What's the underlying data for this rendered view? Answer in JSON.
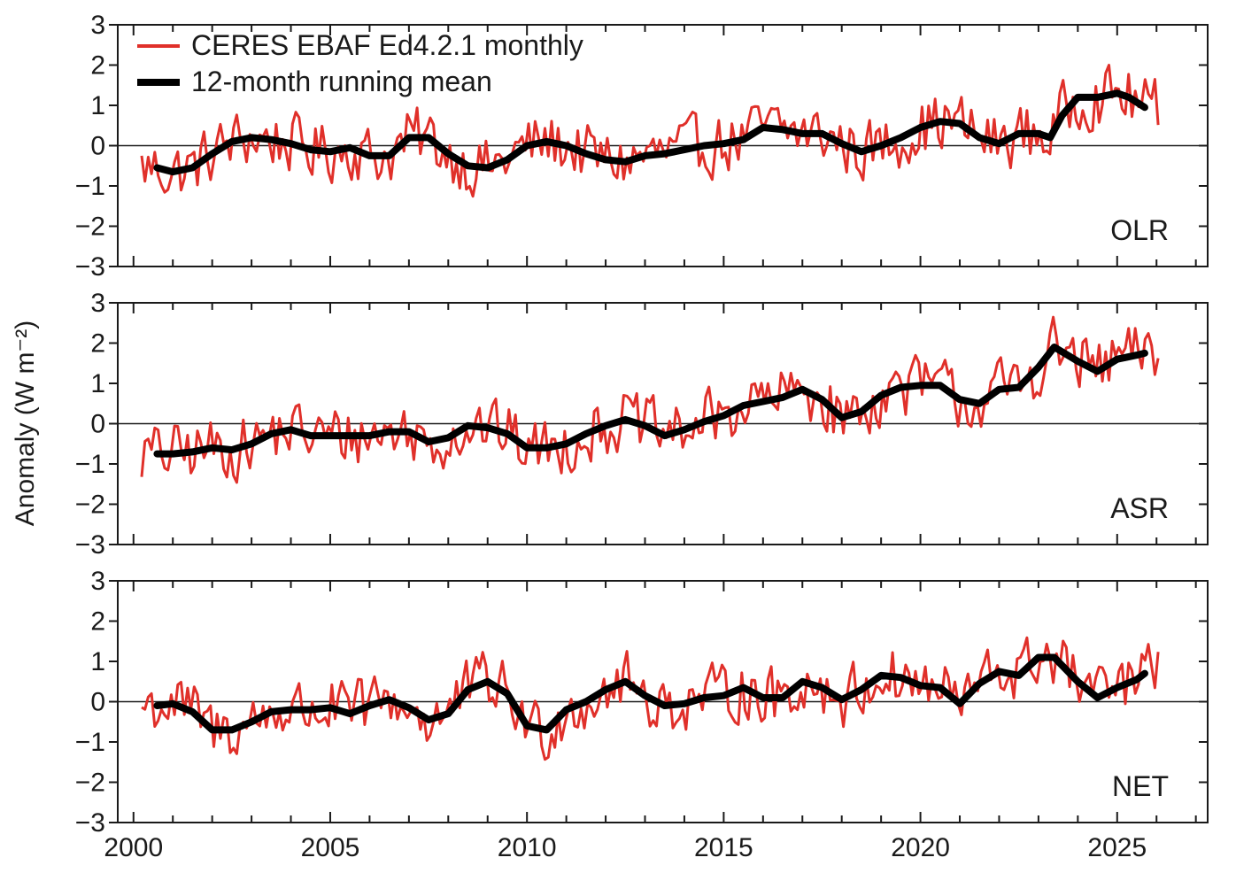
{
  "chart_data": {
    "type": "line",
    "ylabel": "Anomaly (W m⁻²)",
    "xlabel": "",
    "xlim": [
      1999.6,
      2027.3
    ],
    "ylim": [
      -3,
      3
    ],
    "x_ticks": [
      2000,
      2005,
      2010,
      2015,
      2020,
      2025
    ],
    "y_ticks": [
      -3,
      -2,
      -1,
      0,
      1,
      2,
      3
    ],
    "minor_x_tick_step_years": 1,
    "zero_line": true,
    "grid": false,
    "legend_position": "top-left",
    "legend": [
      {
        "name": "CERES EBAF Ed4.2.1 monthly",
        "color": "#e0302a"
      },
      {
        "name": "12-month running mean",
        "color": "#000000"
      }
    ],
    "colors": {
      "monthly": "#e0302a",
      "mean": "#000000",
      "axes": "#1a1a1a"
    },
    "series_time_range": {
      "start": "2000-03",
      "end": "2026-01",
      "monthly_step": true
    },
    "panels": [
      {
        "name": "OLR",
        "smooth": [
          [
            2000.6,
            -0.55
          ],
          [
            2001.0,
            -0.65
          ],
          [
            2001.5,
            -0.55
          ],
          [
            2002.0,
            -0.2
          ],
          [
            2002.5,
            0.1
          ],
          [
            2003.0,
            0.2
          ],
          [
            2003.5,
            0.15
          ],
          [
            2004.0,
            0.05
          ],
          [
            2004.5,
            -0.1
          ],
          [
            2005.0,
            -0.15
          ],
          [
            2005.5,
            -0.05
          ],
          [
            2006.0,
            -0.25
          ],
          [
            2006.5,
            -0.25
          ],
          [
            2007.0,
            0.2
          ],
          [
            2007.5,
            0.2
          ],
          [
            2008.0,
            -0.2
          ],
          [
            2008.5,
            -0.5
          ],
          [
            2009.0,
            -0.55
          ],
          [
            2009.5,
            -0.35
          ],
          [
            2010.0,
            0.0
          ],
          [
            2010.5,
            0.1
          ],
          [
            2011.0,
            0.0
          ],
          [
            2011.5,
            -0.2
          ],
          [
            2012.0,
            -0.35
          ],
          [
            2012.5,
            -0.4
          ],
          [
            2013.0,
            -0.25
          ],
          [
            2013.5,
            -0.2
          ],
          [
            2014.0,
            -0.1
          ],
          [
            2014.5,
            0.0
          ],
          [
            2015.0,
            0.05
          ],
          [
            2015.5,
            0.15
          ],
          [
            2016.0,
            0.45
          ],
          [
            2016.5,
            0.4
          ],
          [
            2017.0,
            0.3
          ],
          [
            2017.5,
            0.3
          ],
          [
            2018.0,
            0.05
          ],
          [
            2018.5,
            -0.15
          ],
          [
            2019.0,
            0.0
          ],
          [
            2019.5,
            0.2
          ],
          [
            2020.0,
            0.45
          ],
          [
            2020.5,
            0.6
          ],
          [
            2021.0,
            0.55
          ],
          [
            2021.5,
            0.2
          ],
          [
            2022.0,
            0.05
          ],
          [
            2022.5,
            0.3
          ],
          [
            2023.0,
            0.3
          ],
          [
            2023.3,
            0.2
          ],
          [
            2023.6,
            0.75
          ],
          [
            2024.0,
            1.2
          ],
          [
            2024.5,
            1.2
          ],
          [
            2025.0,
            1.3
          ],
          [
            2025.3,
            1.2
          ],
          [
            2025.7,
            0.95
          ]
        ],
        "monthly_range": {
          "min": -1.5,
          "max": 2.0
        }
      },
      {
        "name": "ASR",
        "smooth": [
          [
            2000.6,
            -0.75
          ],
          [
            2001.0,
            -0.75
          ],
          [
            2001.5,
            -0.7
          ],
          [
            2002.0,
            -0.6
          ],
          [
            2002.5,
            -0.65
          ],
          [
            2003.0,
            -0.5
          ],
          [
            2003.5,
            -0.25
          ],
          [
            2004.0,
            -0.15
          ],
          [
            2004.5,
            -0.3
          ],
          [
            2005.0,
            -0.3
          ],
          [
            2005.5,
            -0.3
          ],
          [
            2006.0,
            -0.3
          ],
          [
            2006.5,
            -0.2
          ],
          [
            2007.0,
            -0.2
          ],
          [
            2007.5,
            -0.45
          ],
          [
            2008.0,
            -0.35
          ],
          [
            2008.5,
            -0.05
          ],
          [
            2009.0,
            -0.1
          ],
          [
            2009.5,
            -0.25
          ],
          [
            2010.0,
            -0.6
          ],
          [
            2010.5,
            -0.6
          ],
          [
            2011.0,
            -0.5
          ],
          [
            2011.5,
            -0.25
          ],
          [
            2012.0,
            -0.05
          ],
          [
            2012.5,
            0.1
          ],
          [
            2013.0,
            -0.05
          ],
          [
            2013.5,
            -0.3
          ],
          [
            2014.0,
            -0.15
          ],
          [
            2014.5,
            0.05
          ],
          [
            2015.0,
            0.2
          ],
          [
            2015.5,
            0.45
          ],
          [
            2016.0,
            0.55
          ],
          [
            2016.5,
            0.65
          ],
          [
            2017.0,
            0.85
          ],
          [
            2017.5,
            0.6
          ],
          [
            2018.0,
            0.15
          ],
          [
            2018.5,
            0.3
          ],
          [
            2019.0,
            0.7
          ],
          [
            2019.5,
            0.9
          ],
          [
            2020.0,
            0.95
          ],
          [
            2020.5,
            0.95
          ],
          [
            2021.0,
            0.6
          ],
          [
            2021.5,
            0.5
          ],
          [
            2022.0,
            0.85
          ],
          [
            2022.5,
            0.9
          ],
          [
            2023.0,
            1.4
          ],
          [
            2023.4,
            1.9
          ],
          [
            2024.0,
            1.55
          ],
          [
            2024.5,
            1.3
          ],
          [
            2025.0,
            1.6
          ],
          [
            2025.5,
            1.7
          ],
          [
            2025.7,
            1.75
          ]
        ],
        "monthly_range": {
          "min": -1.9,
          "max": 2.8
        }
      },
      {
        "name": "NET",
        "smooth": [
          [
            2000.6,
            -0.1
          ],
          [
            2001.0,
            -0.05
          ],
          [
            2001.5,
            -0.25
          ],
          [
            2002.0,
            -0.7
          ],
          [
            2002.5,
            -0.7
          ],
          [
            2003.0,
            -0.5
          ],
          [
            2003.5,
            -0.25
          ],
          [
            2004.0,
            -0.2
          ],
          [
            2004.5,
            -0.2
          ],
          [
            2005.0,
            -0.15
          ],
          [
            2005.5,
            -0.3
          ],
          [
            2006.0,
            -0.1
          ],
          [
            2006.5,
            0.05
          ],
          [
            2007.0,
            -0.15
          ],
          [
            2007.5,
            -0.45
          ],
          [
            2008.0,
            -0.3
          ],
          [
            2008.5,
            0.3
          ],
          [
            2009.0,
            0.5
          ],
          [
            2009.5,
            0.2
          ],
          [
            2010.0,
            -0.6
          ],
          [
            2010.5,
            -0.7
          ],
          [
            2011.0,
            -0.2
          ],
          [
            2011.5,
            0.0
          ],
          [
            2012.0,
            0.3
          ],
          [
            2012.5,
            0.5
          ],
          [
            2013.0,
            0.15
          ],
          [
            2013.5,
            -0.1
          ],
          [
            2014.0,
            -0.05
          ],
          [
            2014.5,
            0.1
          ],
          [
            2015.0,
            0.15
          ],
          [
            2015.5,
            0.35
          ],
          [
            2016.0,
            0.1
          ],
          [
            2016.5,
            0.1
          ],
          [
            2017.0,
            0.5
          ],
          [
            2017.5,
            0.35
          ],
          [
            2018.0,
            0.05
          ],
          [
            2018.5,
            0.3
          ],
          [
            2019.0,
            0.65
          ],
          [
            2019.5,
            0.6
          ],
          [
            2020.0,
            0.4
          ],
          [
            2020.5,
            0.35
          ],
          [
            2021.0,
            -0.05
          ],
          [
            2021.5,
            0.45
          ],
          [
            2022.0,
            0.75
          ],
          [
            2022.5,
            0.65
          ],
          [
            2023.0,
            1.1
          ],
          [
            2023.4,
            1.1
          ],
          [
            2024.0,
            0.5
          ],
          [
            2024.5,
            0.1
          ],
          [
            2025.0,
            0.35
          ],
          [
            2025.5,
            0.55
          ],
          [
            2025.7,
            0.7
          ]
        ],
        "monthly_range": {
          "min": -1.5,
          "max": 1.9
        }
      }
    ]
  }
}
